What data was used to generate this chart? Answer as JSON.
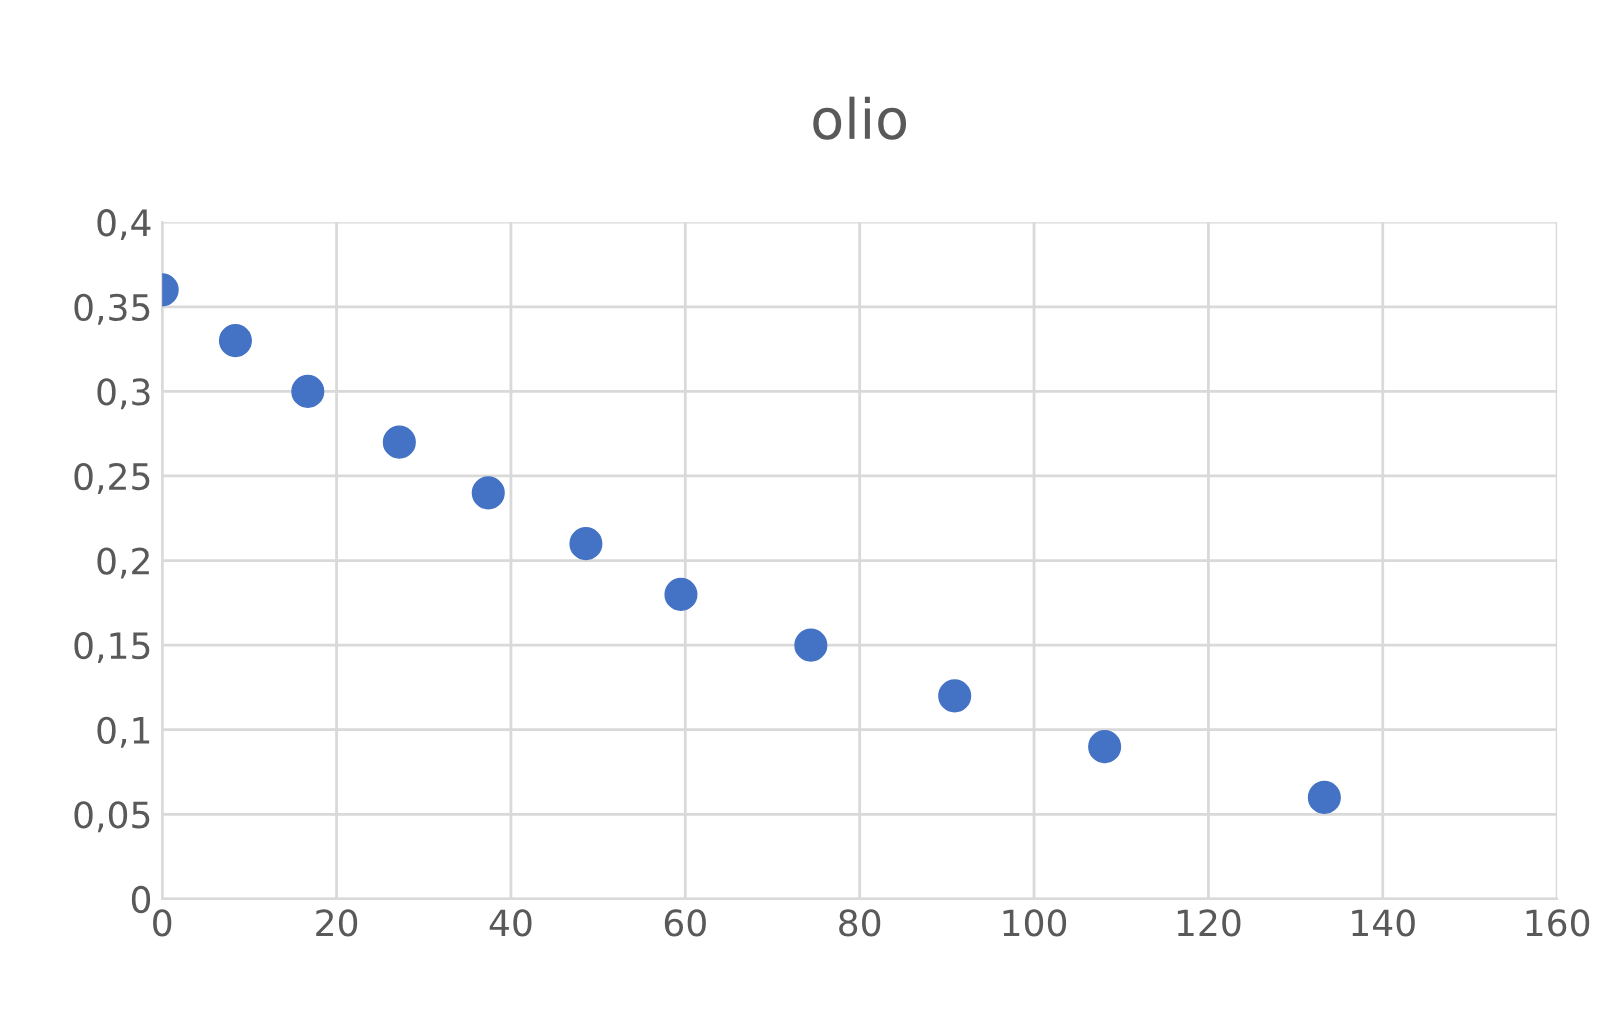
{
  "chart_data": {
    "type": "scatter",
    "title": "olio",
    "x": [
      0,
      8.4,
      16.7,
      27.2,
      37.4,
      48.6,
      59.5,
      74.4,
      90.9,
      108.1,
      133.3
    ],
    "series": [
      {
        "color": "#4472c4",
        "values": [
          0.36,
          0.33,
          0.3,
          0.27,
          0.24,
          0.21,
          0.18,
          0.15,
          0.12,
          0.09,
          0.06
        ]
      }
    ],
    "xlim": [
      0,
      160
    ],
    "xticks": [
      0,
      20,
      40,
      60,
      80,
      100,
      120,
      140,
      160
    ],
    "ylim": [
      0,
      0.4
    ],
    "yticks": [
      0,
      {
        "value": 0.05,
        "label": "0,05"
      },
      {
        "value": 0.1,
        "label": "0,1"
      },
      {
        "value": 0.15,
        "label": "0,15"
      },
      {
        "value": 0.2,
        "label": "0,2"
      },
      {
        "value": 0.25,
        "label": "0,25"
      },
      {
        "value": 0.3,
        "label": "0,3"
      },
      {
        "value": 0.35,
        "label": "0,35"
      },
      {
        "value": 0.4,
        "label": "0,4"
      }
    ],
    "grid": true,
    "marker": "circle"
  }
}
